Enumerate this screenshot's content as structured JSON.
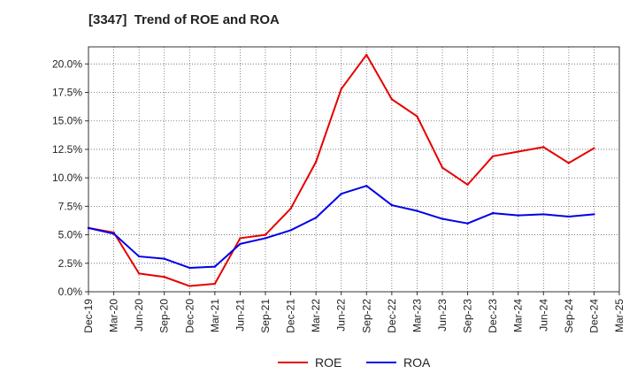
{
  "chart_data": {
    "type": "line",
    "title": "[3347]  Trend of ROE and ROA",
    "xlabel": "",
    "ylabel": "",
    "x": [
      "Dec-19",
      "Mar-20",
      "Jun-20",
      "Sep-20",
      "Dec-20",
      "Mar-21",
      "Jun-21",
      "Sep-21",
      "Dec-21",
      "Mar-22",
      "Jun-22",
      "Sep-22",
      "Dec-22",
      "Mar-23",
      "Jun-23",
      "Sep-23",
      "Dec-23",
      "Mar-24",
      "Jun-24",
      "Sep-24",
      "Dec-24",
      "Mar-25"
    ],
    "ylim": [
      0,
      21.5
    ],
    "yticks": [
      0,
      2.5,
      5,
      7.5,
      10,
      12.5,
      15,
      17.5,
      20
    ],
    "ytick_labels": [
      "0.0%",
      "2.5%",
      "5.0%",
      "7.5%",
      "10.0%",
      "12.5%",
      "15.0%",
      "17.5%",
      "20.0%"
    ],
    "grid": true,
    "legend_position": "bottom-center",
    "series": [
      {
        "name": "ROE",
        "color": "#e60000",
        "values": [
          5.6,
          5.2,
          1.6,
          1.3,
          0.5,
          0.7,
          4.7,
          5.0,
          7.3,
          11.4,
          17.8,
          20.8,
          16.9,
          15.4,
          10.9,
          9.4,
          11.9,
          12.3,
          12.7,
          11.3,
          12.6,
          null
        ]
      },
      {
        "name": "ROA",
        "color": "#0000e6",
        "values": [
          5.6,
          5.1,
          3.1,
          2.9,
          2.1,
          2.2,
          4.2,
          4.7,
          5.4,
          6.5,
          8.6,
          9.3,
          7.6,
          7.1,
          6.4,
          6.0,
          6.9,
          6.7,
          6.8,
          6.6,
          6.8,
          null
        ]
      }
    ]
  }
}
